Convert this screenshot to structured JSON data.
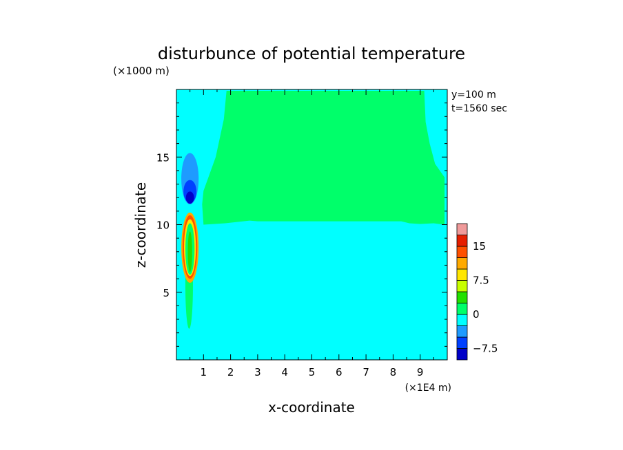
{
  "chart_data": {
    "type": "heatmap",
    "title": "disturbunce of potential temperature",
    "xlabel": "x-coordinate",
    "ylabel": "z-coordinate",
    "x_unit": "(×1E4 m)",
    "y_unit": "(×1000 m)",
    "annotations": [
      "y=100 m",
      "t=1560 sec"
    ],
    "xlim": [
      0,
      10
    ],
    "ylim": [
      0,
      20
    ],
    "x_ticks": [
      1,
      2,
      3,
      4,
      5,
      6,
      7,
      8,
      9
    ],
    "y_ticks": [
      5,
      10,
      15
    ],
    "colorbar": {
      "levels": [
        -10,
        -7.5,
        -5,
        -2.5,
        0,
        2.5,
        5,
        7.5,
        10,
        12.5,
        15,
        17.5,
        20
      ],
      "colors": [
        "#0000c8",
        "#0040ff",
        "#1e9bff",
        "#00ffff",
        "#00ff6a",
        "#22e000",
        "#c8ff00",
        "#ffe600",
        "#ffaa00",
        "#ff5000",
        "#e61e00",
        "#f09a9a"
      ],
      "tick_labels": [
        {
          "value": -7.5,
          "label": "−7.5"
        },
        {
          "value": 0,
          "label": "0"
        },
        {
          "value": 7.5,
          "label": "7.5"
        },
        {
          "value": 15,
          "label": "15"
        }
      ]
    },
    "field": {
      "background": "#00ffff",
      "regions": [
        {
          "name": "upper positive layer",
          "color": "#00ff6a",
          "outline": [
            [
              1.0,
              19.9
            ],
            [
              1.85,
              19.9
            ],
            [
              1.75,
              17.8
            ],
            [
              1.45,
              15
            ],
            [
              1.0,
              12.5
            ],
            [
              0.95,
              11.5
            ],
            [
              1.0,
              10.0
            ],
            [
              1.8,
              10.1
            ],
            [
              2.7,
              10.3
            ],
            [
              3.0,
              10.25
            ],
            [
              8.3,
              10.25
            ],
            [
              8.6,
              10.1
            ],
            [
              9.0,
              10.05
            ],
            [
              9.5,
              10.1
            ],
            [
              9.9,
              10.0
            ],
            [
              9.9,
              13.5
            ],
            [
              9.55,
              14.5
            ],
            [
              9.35,
              16
            ],
            [
              9.2,
              17.6
            ],
            [
              9.15,
              19.9
            ],
            [
              1.0,
              19.9
            ]
          ]
        },
        {
          "name": "cold anomaly outer",
          "color": "#1e9bff",
          "ellipse": {
            "cx": 0.5,
            "cy": 13.4,
            "rx": 0.32,
            "ry": 1.9
          }
        },
        {
          "name": "cold anomaly mid",
          "color": "#0040ff",
          "ellipse": {
            "cx": 0.5,
            "cy": 12.45,
            "rx": 0.24,
            "ry": 0.85
          }
        },
        {
          "name": "cold anomaly core",
          "color": "#0000c8",
          "ellipse": {
            "cx": 0.5,
            "cy": 12.0,
            "rx": 0.15,
            "ry": 0.45
          }
        },
        {
          "name": "warm plume stem",
          "color": "#00ff6a",
          "ellipse": {
            "cx": 0.47,
            "cy": 5.5,
            "rx": 0.14,
            "ry": 3.2
          }
        },
        {
          "name": "warm plume outer",
          "color": "#ffaa00",
          "ellipse": {
            "cx": 0.5,
            "cy": 8.3,
            "rx": 0.32,
            "ry": 2.6
          }
        },
        {
          "name": "warm plume ring",
          "color": "#ff5000",
          "ellipse": {
            "cx": 0.5,
            "cy": 8.35,
            "rx": 0.27,
            "ry": 2.35
          }
        },
        {
          "name": "warm plume band",
          "color": "#ffe600",
          "ellipse": {
            "cx": 0.5,
            "cy": 8.3,
            "rx": 0.22,
            "ry": 2.1
          }
        },
        {
          "name": "warm plume inner",
          "color": "#00ff6a",
          "ellipse": {
            "cx": 0.5,
            "cy": 8.2,
            "rx": 0.17,
            "ry": 1.9
          }
        },
        {
          "name": "warm plume core",
          "color": "#22e000",
          "ellipse": {
            "cx": 0.5,
            "cy": 8.0,
            "rx": 0.08,
            "ry": 1.5
          }
        }
      ]
    }
  }
}
